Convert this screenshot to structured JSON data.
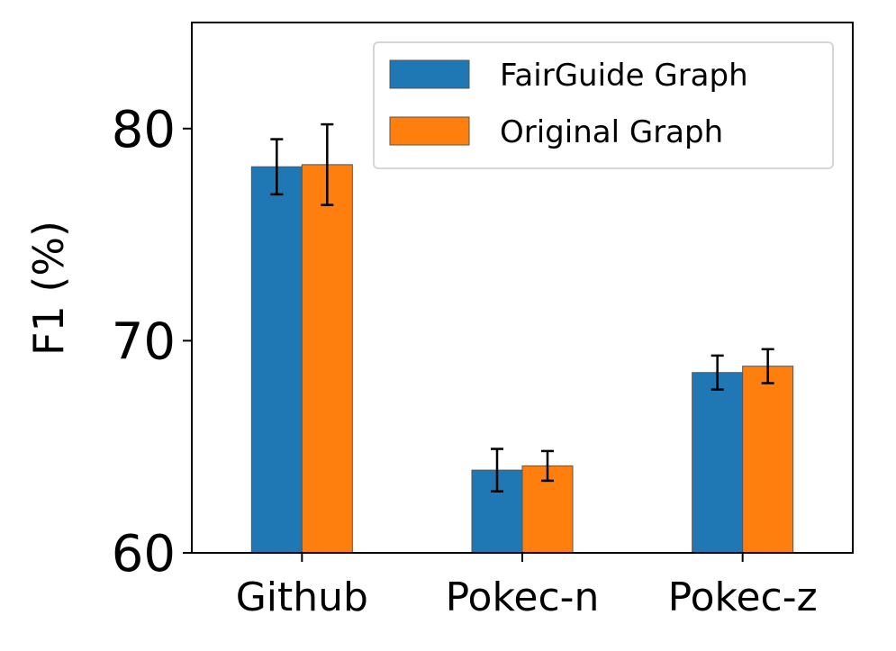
{
  "chart_data": {
    "type": "bar",
    "title": "",
    "xlabel": "",
    "ylabel": "F1 (%)",
    "categories": [
      "Github",
      "Pokec-n",
      "Pokec-z"
    ],
    "ylim": [
      60,
      85
    ],
    "yticks": [
      60,
      70,
      80
    ],
    "grid": false,
    "legend_position": "top-right",
    "series": [
      {
        "name": "FairGuide Graph",
        "color": "#1f77b4",
        "values": [
          78.2,
          63.9,
          68.5
        ],
        "errors": [
          1.3,
          1.0,
          0.8
        ]
      },
      {
        "name": "Original Graph",
        "color": "#ff7f0e",
        "values": [
          78.3,
          64.1,
          68.8
        ],
        "errors": [
          1.9,
          0.7,
          0.8
        ]
      }
    ]
  }
}
